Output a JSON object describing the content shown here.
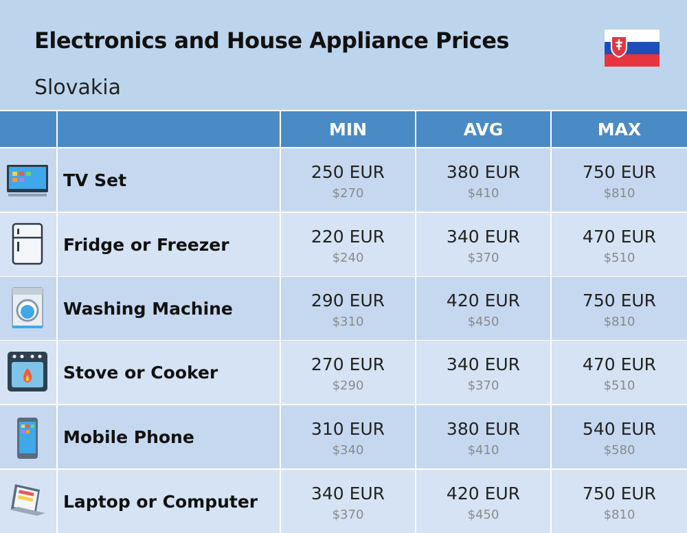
{
  "header": {
    "title": "Electronics and House Appliance Prices",
    "subtitle": "Slovakia"
  },
  "table": {
    "columns": [
      "MIN",
      "AVG",
      "MAX"
    ],
    "rows": [
      {
        "name": "TV Set",
        "cells": [
          {
            "local": "250 EUR",
            "usd": "$270"
          },
          {
            "local": "380 EUR",
            "usd": "$410"
          },
          {
            "local": "750 EUR",
            "usd": "$810"
          }
        ]
      },
      {
        "name": "Fridge or Freezer",
        "cells": [
          {
            "local": "220 EUR",
            "usd": "$240"
          },
          {
            "local": "340 EUR",
            "usd": "$370"
          },
          {
            "local": "470 EUR",
            "usd": "$510"
          }
        ]
      },
      {
        "name": "Washing Machine",
        "cells": [
          {
            "local": "290 EUR",
            "usd": "$310"
          },
          {
            "local": "420 EUR",
            "usd": "$450"
          },
          {
            "local": "750 EUR",
            "usd": "$810"
          }
        ]
      },
      {
        "name": "Stove or Cooker",
        "cells": [
          {
            "local": "270 EUR",
            "usd": "$290"
          },
          {
            "local": "340 EUR",
            "usd": "$370"
          },
          {
            "local": "470 EUR",
            "usd": "$510"
          }
        ]
      },
      {
        "name": "Mobile Phone",
        "cells": [
          {
            "local": "310 EUR",
            "usd": "$340"
          },
          {
            "local": "380 EUR",
            "usd": "$410"
          },
          {
            "local": "540 EUR",
            "usd": "$580"
          }
        ]
      },
      {
        "name": "Laptop or Computer",
        "cells": [
          {
            "local": "340 EUR",
            "usd": "$370"
          },
          {
            "local": "420 EUR",
            "usd": "$450"
          },
          {
            "local": "750 EUR",
            "usd": "$810"
          }
        ]
      }
    ]
  }
}
